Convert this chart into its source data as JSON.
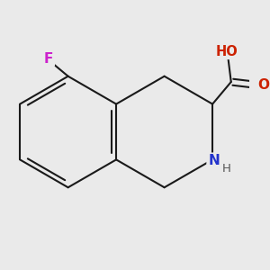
{
  "bg_color": "#eaeaea",
  "bond_color": "#1a1a1a",
  "bond_width": 1.5,
  "atom_colors": {
    "F": "#cc22cc",
    "N": "#2233cc",
    "O": "#cc2200",
    "H_label": "#555555"
  },
  "font_size": 10,
  "fig_size": [
    3.0,
    3.0
  ],
  "dpi": 100
}
